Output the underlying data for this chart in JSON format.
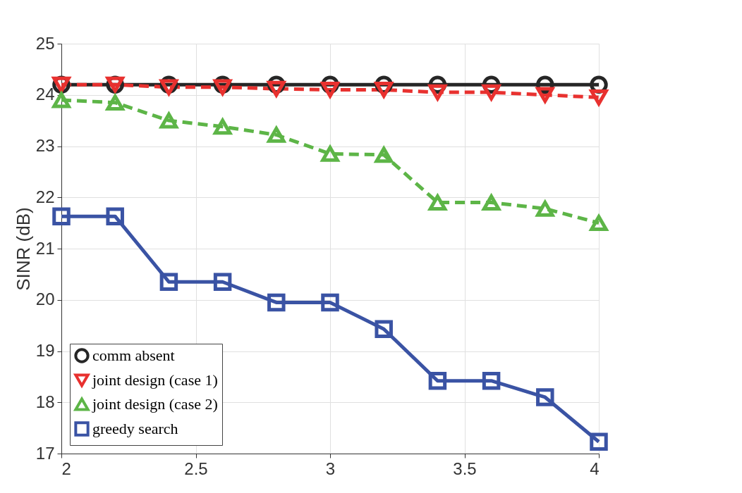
{
  "chart_data": {
    "type": "line",
    "ylabel": "SINR (dB)",
    "x": [
      2,
      2.2,
      2.4,
      2.6,
      2.8,
      3,
      3.2,
      3.4,
      3.6,
      3.8,
      4
    ],
    "xlim": [
      2,
      4
    ],
    "xticks": [
      2,
      2.5,
      3,
      3.5,
      4
    ],
    "ylim": [
      17,
      25
    ],
    "yticks": [
      17,
      18,
      19,
      20,
      21,
      22,
      23,
      24,
      25
    ],
    "grid": true,
    "legend": "bottom left",
    "series": [
      {
        "name": "comm absent",
        "color": "#262626",
        "marker": "circle",
        "line_style": "solid",
        "values": [
          24.2,
          24.2,
          24.2,
          24.2,
          24.2,
          24.2,
          24.2,
          24.2,
          24.2,
          24.2,
          24.2
        ]
      },
      {
        "name": "joint design (case 1)",
        "color": "#e8312f",
        "marker": "triangle-down",
        "line_style": "dashed",
        "values": [
          24.2,
          24.2,
          24.15,
          24.15,
          24.12,
          24.1,
          24.1,
          24.05,
          24.05,
          24.0,
          23.95
        ]
      },
      {
        "name": "joint design (case 2)",
        "color": "#5db547",
        "marker": "triangle",
        "line_style": "dashed",
        "values": [
          23.9,
          23.85,
          23.5,
          23.38,
          23.22,
          22.85,
          22.83,
          21.9,
          21.9,
          21.78,
          21.5
        ]
      },
      {
        "name": "greedy search",
        "color": "#3a53a4",
        "marker": "square",
        "line_style": "solid",
        "values": [
          21.63,
          21.63,
          20.35,
          20.35,
          19.95,
          19.95,
          19.43,
          18.42,
          18.42,
          18.1,
          17.23
        ]
      }
    ]
  }
}
